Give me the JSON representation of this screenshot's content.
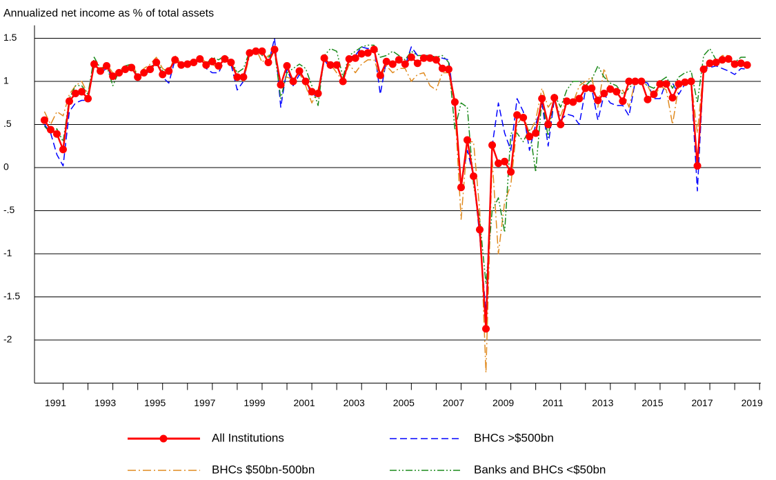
{
  "chart_data": {
    "type": "line",
    "title": "Annualized net income as % of total assets",
    "x": [
      1990.25,
      1990.5,
      1990.75,
      1991,
      1991.25,
      1991.5,
      1991.75,
      1992,
      1992.25,
      1992.5,
      1992.75,
      1993,
      1993.25,
      1993.5,
      1993.75,
      1994,
      1994.25,
      1994.5,
      1994.75,
      1995,
      1995.25,
      1995.5,
      1995.75,
      1996,
      1996.25,
      1996.5,
      1996.75,
      1997,
      1997.25,
      1997.5,
      1997.75,
      1998,
      1998.25,
      1998.5,
      1998.75,
      1999,
      1999.25,
      1999.5,
      1999.75,
      2000,
      2000.25,
      2000.5,
      2000.75,
      2001,
      2001.25,
      2001.5,
      2001.75,
      2002,
      2002.25,
      2002.5,
      2002.75,
      2003,
      2003.25,
      2003.5,
      2003.75,
      2004,
      2004.25,
      2004.5,
      2004.75,
      2005,
      2005.25,
      2005.5,
      2005.75,
      2006,
      2006.25,
      2006.5,
      2006.75,
      2007,
      2007.25,
      2007.5,
      2007.75,
      2008,
      2008.25,
      2008.5,
      2008.75,
      2009,
      2009.25,
      2009.5,
      2009.75,
      2010,
      2010.25,
      2010.5,
      2010.75,
      2011,
      2011.25,
      2011.5,
      2011.75,
      2012,
      2012.25,
      2012.5,
      2012.75,
      2013,
      2013.25,
      2013.5,
      2013.75,
      2014,
      2014.25,
      2014.5,
      2014.75,
      2015,
      2015.25,
      2015.5,
      2015.75,
      2016,
      2016.25,
      2016.5,
      2016.75,
      2017,
      2017.25,
      2017.5,
      2017.75,
      2018,
      2018.25,
      2018.5
    ],
    "series": [
      {
        "name": "All Institutions",
        "color": "#ff0000",
        "style": "solid",
        "marker": "circle",
        "values": [
          0.55,
          0.44,
          0.39,
          0.21,
          0.77,
          0.86,
          0.88,
          0.8,
          1.2,
          1.12,
          1.18,
          1.06,
          1.1,
          1.14,
          1.16,
          1.05,
          1.1,
          1.14,
          1.22,
          1.08,
          1.12,
          1.25,
          1.19,
          1.2,
          1.22,
          1.26,
          1.19,
          1.23,
          1.18,
          1.26,
          1.22,
          1.05,
          1.05,
          1.33,
          1.35,
          1.35,
          1.22,
          1.37,
          0.96,
          1.18,
          1.0,
          1.12,
          1.0,
          0.88,
          0.86,
          1.27,
          1.19,
          1.19,
          1.0,
          1.26,
          1.27,
          1.32,
          1.33,
          1.37,
          1.07,
          1.23,
          1.2,
          1.25,
          1.2,
          1.28,
          1.21,
          1.27,
          1.27,
          1.25,
          1.15,
          1.14,
          0.76,
          -0.23,
          0.32,
          -0.1,
          -0.72,
          -1.87,
          0.26,
          0.05,
          0.07,
          -0.05,
          0.61,
          0.58,
          0.36,
          0.4,
          0.8,
          0.5,
          0.81,
          0.5,
          0.77,
          0.76,
          0.8,
          0.92,
          0.92,
          0.78,
          0.86,
          0.91,
          0.88,
          0.77,
          1.0,
          1.0,
          1.0,
          0.79,
          0.85,
          0.97,
          0.97,
          0.81,
          0.97,
          0.99,
          1.0,
          0.02,
          1.14,
          1.21,
          1.22,
          1.25,
          1.26,
          1.2,
          1.21,
          1.19
        ]
      },
      {
        "name": "BHCs >$500bn",
        "color": "#0000ff",
        "style": "dashed",
        "values": [
          0.5,
          0.4,
          0.15,
          0.02,
          0.65,
          0.75,
          0.78,
          0.78,
          1.22,
          1.1,
          1.15,
          1.05,
          1.08,
          1.12,
          1.18,
          1.02,
          1.08,
          1.12,
          1.25,
          1.05,
          0.98,
          1.25,
          1.18,
          1.2,
          1.22,
          1.24,
          1.15,
          1.1,
          1.1,
          1.25,
          1.2,
          0.9,
          1.0,
          1.35,
          1.33,
          1.37,
          1.2,
          1.5,
          0.7,
          1.15,
          0.95,
          1.08,
          1.0,
          0.85,
          0.82,
          1.25,
          1.15,
          1.2,
          0.98,
          1.28,
          1.3,
          1.4,
          1.38,
          1.4,
          0.85,
          1.25,
          1.18,
          1.25,
          1.18,
          1.4,
          1.3,
          1.3,
          1.3,
          1.28,
          1.27,
          1.25,
          0.7,
          -0.2,
          0.2,
          -0.1,
          -0.8,
          -1.68,
          0.25,
          0.75,
          0.4,
          0.2,
          0.8,
          0.65,
          0.2,
          0.5,
          0.75,
          0.25,
          0.8,
          0.55,
          0.62,
          0.6,
          0.5,
          0.9,
          0.92,
          0.55,
          0.85,
          0.75,
          0.72,
          0.72,
          0.6,
          1.0,
          1.0,
          0.98,
          0.8,
          0.8,
          1.0,
          0.98,
          0.85,
          0.97,
          0.98,
          -0.27,
          1.15,
          1.16,
          1.18,
          1.15,
          1.12,
          1.08,
          1.15,
          1.14
        ]
      },
      {
        "name": "BHCs $50bn-500bn",
        "color": "#e08a1e",
        "style": "dashdot",
        "values": [
          0.65,
          0.5,
          0.65,
          0.6,
          0.85,
          0.95,
          1.0,
          0.85,
          1.18,
          1.15,
          1.2,
          1.1,
          1.12,
          1.15,
          1.2,
          1.08,
          1.15,
          1.2,
          1.28,
          1.15,
          1.1,
          1.3,
          1.2,
          1.22,
          1.25,
          1.28,
          1.22,
          1.2,
          1.15,
          1.28,
          1.2,
          1.1,
          1.0,
          1.3,
          1.38,
          1.22,
          1.3,
          1.33,
          1.0,
          1.05,
          1.02,
          1.1,
          0.95,
          0.75,
          0.9,
          1.25,
          1.2,
          1.1,
          1.0,
          1.2,
          1.1,
          1.2,
          1.25,
          1.25,
          1.05,
          1.18,
          1.1,
          1.15,
          1.15,
          1.0,
          1.08,
          1.1,
          0.95,
          0.9,
          1.1,
          1.1,
          0.7,
          -0.6,
          0.3,
          0.3,
          -0.5,
          -2.38,
          0.1,
          -1.0,
          -0.4,
          -0.2,
          0.5,
          0.6,
          0.4,
          0.55,
          0.92,
          0.7,
          0.8,
          0.6,
          0.8,
          0.75,
          0.95,
          1.0,
          1.05,
          0.7,
          1.15,
          0.9,
          0.85,
          0.9,
          0.7,
          1.0,
          1.0,
          0.95,
          0.8,
          0.95,
          0.9,
          0.5,
          0.95,
          1.0,
          1.0,
          0.4,
          1.15,
          1.22,
          1.22,
          1.3,
          1.3,
          1.18,
          1.2,
          1.19
        ]
      },
      {
        "name": "Banks and BHCs <$50bn",
        "color": "#1a8a1a",
        "style": "dashdotdot",
        "values": [
          0.48,
          0.4,
          0.45,
          0.3,
          0.8,
          0.95,
          0.95,
          0.85,
          1.28,
          1.15,
          1.18,
          0.95,
          1.12,
          1.18,
          1.2,
          1.05,
          1.12,
          1.15,
          1.25,
          1.12,
          1.15,
          1.22,
          1.22,
          1.18,
          1.25,
          1.25,
          1.2,
          1.28,
          1.25,
          1.3,
          1.25,
          1.1,
          1.15,
          1.35,
          1.38,
          1.3,
          1.28,
          1.35,
          0.8,
          1.1,
          1.15,
          1.2,
          1.15,
          0.95,
          0.72,
          1.3,
          1.38,
          1.35,
          1.05,
          1.3,
          1.35,
          1.4,
          1.42,
          1.42,
          1.28,
          1.3,
          1.35,
          1.3,
          1.25,
          1.35,
          1.3,
          1.3,
          1.3,
          1.28,
          1.3,
          1.22,
          0.45,
          0.75,
          0.7,
          -0.2,
          -0.6,
          -1.35,
          -0.5,
          -0.35,
          -0.75,
          0.4,
          0.4,
          0.3,
          0.45,
          -0.05,
          0.8,
          0.35,
          0.85,
          0.7,
          0.9,
          1.0,
          1.0,
          0.95,
          1.02,
          1.18,
          1.05,
          0.98,
          0.95,
          0.85,
          0.92,
          1.0,
          1.0,
          0.95,
          0.92,
          1.0,
          1.05,
          0.92,
          1.05,
          1.1,
          1.12,
          0.75,
          1.3,
          1.38,
          1.25,
          1.28,
          1.25,
          1.22,
          1.28,
          1.28
        ]
      }
    ],
    "xlim": [
      1989.85,
      2019.05
    ],
    "xticks": [
      1991,
      1993,
      1995,
      1997,
      1999,
      2001,
      2003,
      2005,
      2007,
      2009,
      2011,
      2013,
      2015,
      2017,
      2019
    ],
    "ylim": [
      -2.5,
      1.65
    ],
    "yticks": [
      -2,
      -1.5,
      -1,
      {
        "value": -0.5,
        "label": "-.5"
      },
      0,
      {
        "value": 0.5,
        "label": ".5"
      },
      1,
      1.5
    ],
    "grid": true,
    "legend": "bottom"
  }
}
